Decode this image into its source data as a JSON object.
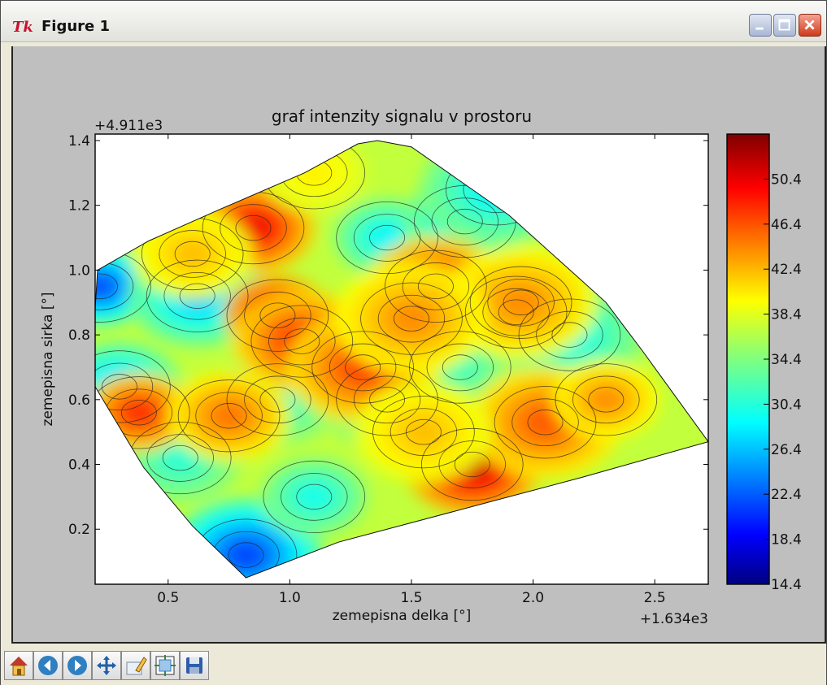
{
  "window": {
    "title": "Figure 1",
    "app_icon": "tk-feather-icon",
    "controls": [
      "minimize-icon",
      "maximize-icon",
      "close-icon"
    ]
  },
  "toolbar": {
    "buttons": [
      {
        "name": "home-button",
        "icon": "home-icon"
      },
      {
        "name": "back-button",
        "icon": "back-arrow-icon"
      },
      {
        "name": "forward-button",
        "icon": "forward-arrow-icon"
      },
      {
        "name": "pan-button",
        "icon": "pan-icon"
      },
      {
        "name": "zoom-button",
        "icon": "zoom-rect-icon"
      },
      {
        "name": "subplots-button",
        "icon": "subplots-icon"
      },
      {
        "name": "save-button",
        "icon": "save-icon"
      }
    ]
  },
  "chart_data": {
    "type": "contour",
    "title": "graf intenzity signalu v prostoru",
    "xlabel": "zemepisna delka [°]",
    "ylabel": "zemepisna sirka [°]",
    "x_offset_label": "+1.634e3",
    "y_offset_label": "+4.911e3",
    "xlim": [
      0.2,
      2.72
    ],
    "ylim": [
      0.03,
      1.42
    ],
    "x_ticks": [
      0.5,
      1.0,
      1.5,
      2.0,
      2.5
    ],
    "x_tick_labels": [
      "0.5",
      "1.0",
      "1.5",
      "2.0",
      "2.5"
    ],
    "y_ticks": [
      0.2,
      0.4,
      0.6,
      0.8,
      1.0,
      1.2,
      1.4
    ],
    "y_tick_labels": [
      "0.2",
      "0.4",
      "0.6",
      "0.8",
      "1.0",
      "1.2",
      "1.4"
    ],
    "colormap": "jet",
    "colorbar": {
      "min": 14.4,
      "max": 54.4,
      "ticks": [
        14.4,
        18.4,
        22.4,
        26.4,
        30.4,
        34.4,
        38.4,
        42.4,
        46.4,
        50.4
      ],
      "tick_labels": [
        "14.4",
        "18.4",
        "22.4",
        "26.4",
        "30.4",
        "34.4",
        "38.4",
        "42.4",
        "46.4",
        "50.4"
      ]
    },
    "hull_polygon": [
      [
        0.2,
        0.88
      ],
      [
        0.21,
        1.0
      ],
      [
        0.42,
        1.09
      ],
      [
        0.72,
        1.19
      ],
      [
        1.06,
        1.3
      ],
      [
        1.28,
        1.39
      ],
      [
        1.36,
        1.4
      ],
      [
        1.5,
        1.38
      ],
      [
        1.9,
        1.17
      ],
      [
        2.3,
        0.9
      ],
      [
        2.45,
        0.75
      ],
      [
        2.72,
        0.47
      ],
      [
        2.2,
        0.36
      ],
      [
        1.8,
        0.28
      ],
      [
        1.2,
        0.16
      ],
      [
        0.82,
        0.05
      ],
      [
        0.6,
        0.21
      ],
      [
        0.4,
        0.39
      ],
      [
        0.2,
        0.64
      ]
    ],
    "hot_spots": [
      {
        "x": 1.75,
        "y": 0.4,
        "value": 52
      },
      {
        "x": 2.05,
        "y": 0.53,
        "value": 46
      },
      {
        "x": 0.95,
        "y": 0.86,
        "value": 52
      },
      {
        "x": 0.85,
        "y": 1.13,
        "value": 50
      },
      {
        "x": 1.05,
        "y": 0.78,
        "value": 48
      },
      {
        "x": 1.3,
        "y": 0.7,
        "value": 47
      },
      {
        "x": 0.38,
        "y": 0.56,
        "value": 48
      },
      {
        "x": 0.75,
        "y": 0.55,
        "value": 45
      },
      {
        "x": 1.6,
        "y": 0.95,
        "value": 48
      },
      {
        "x": 1.95,
        "y": 0.9,
        "value": 44
      },
      {
        "x": 2.3,
        "y": 0.6,
        "value": 44
      },
      {
        "x": 0.6,
        "y": 1.05,
        "value": 42
      },
      {
        "x": 1.55,
        "y": 0.5,
        "value": 42
      },
      {
        "x": 1.5,
        "y": 0.85,
        "value": 44
      },
      {
        "x": 1.1,
        "y": 1.3,
        "value": 40
      }
    ],
    "cold_spots": [
      {
        "x": 0.22,
        "y": 0.95,
        "value": 22
      },
      {
        "x": 0.3,
        "y": 0.64,
        "value": 27
      },
      {
        "x": 0.62,
        "y": 0.92,
        "value": 27
      },
      {
        "x": 0.82,
        "y": 0.12,
        "value": 22
      },
      {
        "x": 1.4,
        "y": 1.1,
        "value": 29
      },
      {
        "x": 1.72,
        "y": 1.15,
        "value": 28
      },
      {
        "x": 1.93,
        "y": 0.87,
        "value": 24
      },
      {
        "x": 1.85,
        "y": 1.25,
        "value": 29
      },
      {
        "x": 1.1,
        "y": 0.3,
        "value": 30
      },
      {
        "x": 0.55,
        "y": 0.42,
        "value": 31
      },
      {
        "x": 1.4,
        "y": 0.6,
        "value": 32
      },
      {
        "x": 2.15,
        "y": 0.8,
        "value": 30
      },
      {
        "x": 1.7,
        "y": 0.7,
        "value": 32
      },
      {
        "x": 0.95,
        "y": 0.6,
        "value": 31
      }
    ],
    "base_value": 37
  }
}
